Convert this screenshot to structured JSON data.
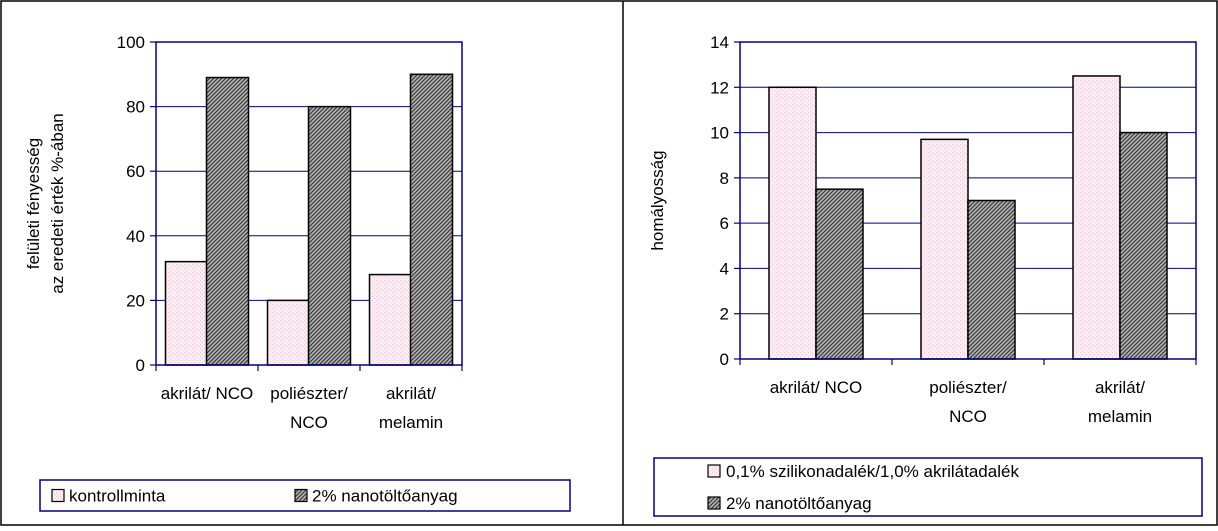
{
  "chart_data": [
    {
      "type": "bar",
      "categories": [
        [
          "akrilát/ NCO"
        ],
        [
          "poliészter/",
          "NCO"
        ],
        [
          "akrilát/",
          "melamin"
        ]
      ],
      "series": [
        {
          "name": "kontrollminta",
          "values": [
            32,
            20,
            28
          ]
        },
        {
          "name": "2% nanotöltőanyag",
          "values": [
            89,
            80,
            90
          ]
        }
      ],
      "ylabel": [
        "felületi fényesség",
        "az eredeti érték %-ában"
      ],
      "ylim": [
        0,
        100
      ],
      "yticks": [
        0,
        20,
        40,
        60,
        80,
        100
      ],
      "ytick_labels": [
        "0",
        "20",
        "40",
        "60",
        "80",
        "100"
      ],
      "grid": true,
      "legend_position": "bottom"
    },
    {
      "type": "bar",
      "categories": [
        [
          "akrilát/ NCO"
        ],
        [
          "poliészter/",
          "NCO"
        ],
        [
          "akrilát/",
          "melamin"
        ]
      ],
      "series": [
        {
          "name": "0,1% szilikonadalék/1,0% akrilátadalék",
          "values": [
            12,
            9.7,
            12.5
          ]
        },
        {
          "name": "2% nanotöltőanyag",
          "values": [
            7.5,
            7,
            10
          ]
        }
      ],
      "ylabel": [
        "homályosság"
      ],
      "ylim": [
        0,
        14
      ],
      "yticks": [
        0,
        2,
        4,
        6,
        8,
        10,
        12,
        14
      ],
      "ytick_labels": [
        "0",
        "2",
        "4",
        "6",
        "8",
        "10",
        "12",
        "14"
      ],
      "grid": true,
      "legend_position": "bottom"
    }
  ],
  "colors": {
    "frame": "#000000",
    "plot_border": "#000080",
    "grid": "#000080",
    "bar_outline": "#000000",
    "control_fill": "#fbeef3",
    "nano_fill": "#8e8e8e"
  }
}
